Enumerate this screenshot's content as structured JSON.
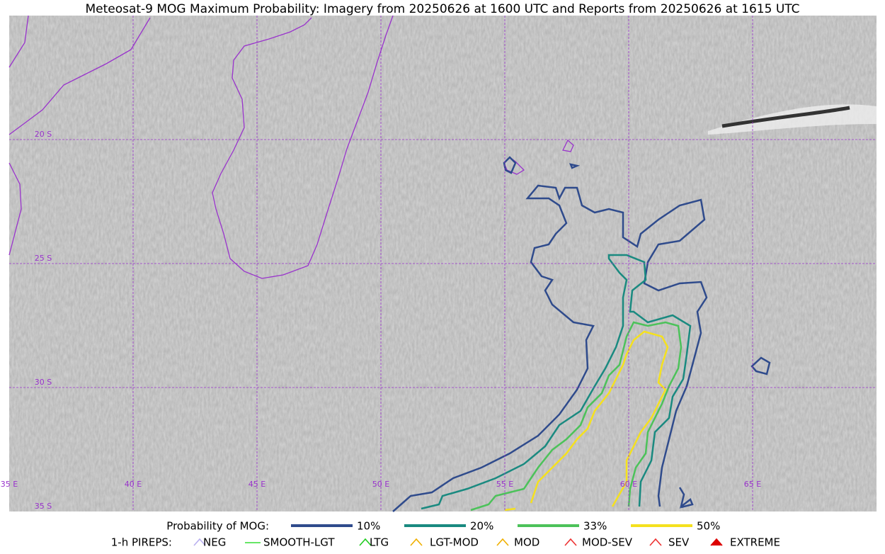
{
  "title": "Meteosat-9 MOG Maximum Probability: Imagery from 20250626 at 1600 UTC and Reports from 20250626 at 1615 UTC",
  "map": {
    "lat_labels": [
      "20 S",
      "25 S",
      "30 S",
      "35 S"
    ],
    "lon_labels": [
      "35 E",
      "40 E",
      "45 E",
      "50 E",
      "55 E",
      "60 E",
      "65 E"
    ],
    "grid_color": "#9933cc"
  },
  "legend": {
    "probability": {
      "label": "Probability of MOG:",
      "items": [
        {
          "name": "10%",
          "color": "#2f4b8c"
        },
        {
          "name": "20%",
          "color": "#1a8a80"
        },
        {
          "name": "33%",
          "color": "#4cc25a"
        },
        {
          "name": "50%",
          "color": "#f5e11e"
        }
      ]
    },
    "pireps": {
      "label": "1-h PIREPS:",
      "items": [
        {
          "name": "NEG",
          "color": "#b9b0f0"
        },
        {
          "name": "SMOOTH-LGT",
          "color": "#33dd33"
        },
        {
          "name": "LTG",
          "color": "#22cc22"
        },
        {
          "name": "LGT-MOD",
          "color": "#f0b000"
        },
        {
          "name": "MOD",
          "color": "#f0b000"
        },
        {
          "name": "MOD-SEV",
          "color": "#ee3333"
        },
        {
          "name": "SEV",
          "color": "#ee3333"
        },
        {
          "name": "EXTREME",
          "color": "#dd0000"
        }
      ]
    }
  }
}
